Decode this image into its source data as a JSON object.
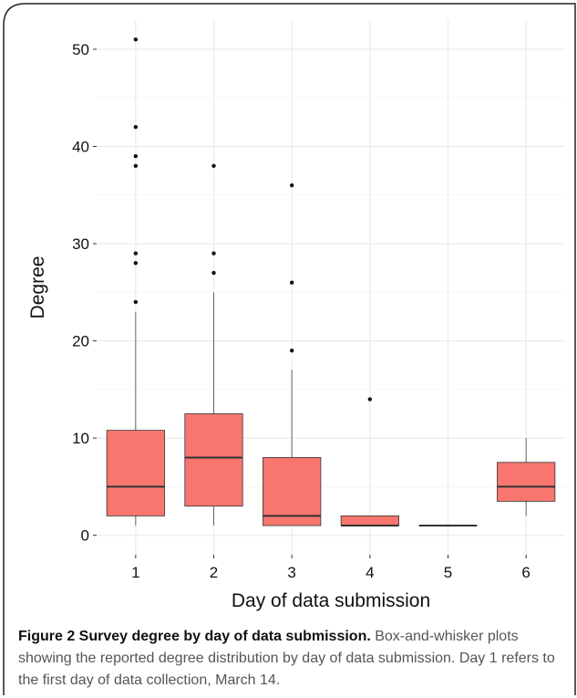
{
  "chart_data": {
    "type": "box",
    "xlabel": "Day of data submission",
    "ylabel": "Degree",
    "categories": [
      "1",
      "2",
      "3",
      "4",
      "5",
      "6"
    ],
    "yticks": [
      "0",
      "10",
      "20",
      "30",
      "40",
      "50"
    ],
    "ylim": [
      -2,
      53
    ],
    "grid": true,
    "box_color": "#f8766d",
    "boxes": [
      {
        "category": "1",
        "whisker_low": 1,
        "q1": 2,
        "median": 5,
        "q3": 10.8,
        "whisker_high": 23,
        "outliers": [
          24,
          28,
          29,
          38,
          39,
          42,
          51
        ]
      },
      {
        "category": "2",
        "whisker_low": 1,
        "q1": 3,
        "median": 8,
        "q3": 12.5,
        "whisker_high": 25,
        "outliers": [
          27,
          29,
          38
        ]
      },
      {
        "category": "3",
        "whisker_low": 1,
        "q1": 1,
        "median": 2,
        "q3": 8,
        "whisker_high": 17,
        "outliers": [
          19,
          26,
          36
        ]
      },
      {
        "category": "4",
        "whisker_low": 1,
        "q1": 1,
        "median": 1,
        "q3": 2,
        "whisker_high": 2,
        "outliers": [
          14
        ]
      },
      {
        "category": "5",
        "whisker_low": 1,
        "q1": 1,
        "median": 1,
        "q3": 1,
        "whisker_high": 1,
        "outliers": []
      },
      {
        "category": "6",
        "whisker_low": 2,
        "q1": 3.5,
        "median": 5,
        "q3": 7.5,
        "whisker_high": 10,
        "outliers": []
      }
    ]
  },
  "caption": {
    "label": "Figure 2 Survey degree by day of data submission.",
    "text": "Box-and-whisker plots showing the reported degree distribution by day of data submission. Day 1 refers to the first day of data collection, March 14."
  }
}
